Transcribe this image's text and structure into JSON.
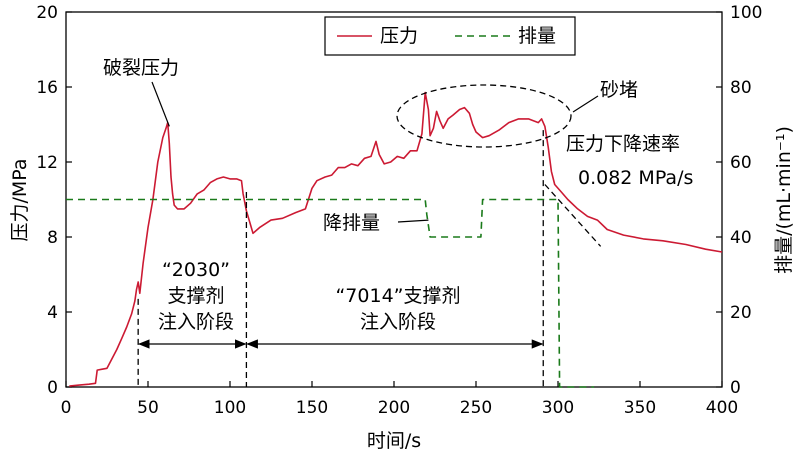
{
  "chart_data": {
    "type": "line",
    "xlabel": "时间/s",
    "ylabel_left": "压力/MPa",
    "ylabel_right": "排量/(mL·min⁻¹)",
    "xlim": [
      0,
      400
    ],
    "ylim_left": [
      0,
      20
    ],
    "ylim_right": [
      0,
      100
    ],
    "x_ticks": [
      "0",
      "50",
      "100",
      "150",
      "200",
      "250",
      "300",
      "350",
      "400"
    ],
    "y_left_ticks": [
      "0",
      "4",
      "8",
      "12",
      "16",
      "20"
    ],
    "y_right_ticks": [
      "0",
      "20",
      "40",
      "60",
      "80",
      "100"
    ],
    "grid": false,
    "legend_position": "top-center",
    "colors": {
      "pressure": "#cc1a33",
      "flow": "#1a7a1a"
    },
    "series": [
      {
        "name": "压力",
        "axis": "left",
        "style": "solid",
        "points": [
          [
            2,
            0.05
          ],
          [
            8,
            0.1
          ],
          [
            14,
            0.15
          ],
          [
            18,
            0.2
          ],
          [
            19,
            0.9
          ],
          [
            22,
            0.95
          ],
          [
            25,
            1.0
          ],
          [
            28,
            1.5
          ],
          [
            31,
            2.0
          ],
          [
            34,
            2.6
          ],
          [
            37,
            3.2
          ],
          [
            40,
            3.9
          ],
          [
            42,
            4.6
          ],
          [
            43,
            5.2
          ],
          [
            44,
            5.6
          ],
          [
            45,
            5.0
          ],
          [
            47,
            6.6
          ],
          [
            50,
            8.5
          ],
          [
            53,
            10.0
          ],
          [
            56,
            12.0
          ],
          [
            59,
            13.3
          ],
          [
            61,
            13.8
          ],
          [
            62,
            14.1
          ],
          [
            63,
            13.0
          ],
          [
            64,
            11.2
          ],
          [
            65,
            10.3
          ],
          [
            66,
            9.7
          ],
          [
            68,
            9.5
          ],
          [
            72,
            9.5
          ],
          [
            76,
            9.8
          ],
          [
            80,
            10.3
          ],
          [
            84,
            10.5
          ],
          [
            88,
            10.9
          ],
          [
            92,
            11.1
          ],
          [
            96,
            11.2
          ],
          [
            100,
            11.1
          ],
          [
            104,
            11.1
          ],
          [
            107,
            11.0
          ],
          [
            108,
            10.3
          ],
          [
            110,
            9.4
          ],
          [
            112,
            8.8
          ],
          [
            114,
            8.2
          ],
          [
            118,
            8.5
          ],
          [
            125,
            8.9
          ],
          [
            132,
            9.0
          ],
          [
            140,
            9.3
          ],
          [
            146,
            9.5
          ],
          [
            150,
            10.6
          ],
          [
            153,
            11.0
          ],
          [
            158,
            11.2
          ],
          [
            162,
            11.3
          ],
          [
            166,
            11.7
          ],
          [
            170,
            11.7
          ],
          [
            174,
            11.9
          ],
          [
            178,
            11.8
          ],
          [
            182,
            12.2
          ],
          [
            186,
            12.3
          ],
          [
            189,
            13.1
          ],
          [
            191,
            12.4
          ],
          [
            194,
            11.9
          ],
          [
            198,
            12.0
          ],
          [
            202,
            12.3
          ],
          [
            206,
            12.2
          ],
          [
            210,
            12.6
          ],
          [
            214,
            12.6
          ],
          [
            217,
            13.5
          ],
          [
            219,
            15.7
          ],
          [
            221,
            14.8
          ],
          [
            222,
            13.4
          ],
          [
            224,
            13.8
          ],
          [
            226,
            14.7
          ],
          [
            228,
            14.2
          ],
          [
            230,
            13.8
          ],
          [
            233,
            14.3
          ],
          [
            236,
            14.5
          ],
          [
            240,
            14.8
          ],
          [
            243,
            14.9
          ],
          [
            246,
            14.6
          ],
          [
            248,
            14.0
          ],
          [
            250,
            13.6
          ],
          [
            254,
            13.3
          ],
          [
            258,
            13.4
          ],
          [
            264,
            13.7
          ],
          [
            270,
            14.1
          ],
          [
            276,
            14.3
          ],
          [
            282,
            14.3
          ],
          [
            288,
            14.1
          ],
          [
            290,
            14.3
          ],
          [
            292,
            13.9
          ],
          [
            294,
            12.8
          ],
          [
            296,
            11.5
          ],
          [
            298,
            10.8
          ],
          [
            302,
            10.4
          ],
          [
            306,
            10.0
          ],
          [
            312,
            9.5
          ],
          [
            318,
            9.1
          ],
          [
            324,
            8.9
          ],
          [
            330,
            8.4
          ],
          [
            340,
            8.1
          ],
          [
            352,
            7.9
          ],
          [
            364,
            7.8
          ],
          [
            378,
            7.6
          ],
          [
            390,
            7.35
          ],
          [
            400,
            7.2
          ]
        ]
      },
      {
        "name": "排量",
        "axis": "right",
        "style": "dashed",
        "points": [
          [
            0,
            50
          ],
          [
            219,
            50
          ],
          [
            220,
            46
          ],
          [
            222,
            40
          ],
          [
            253,
            40
          ],
          [
            254,
            50
          ],
          [
            300,
            50
          ],
          [
            301,
            0
          ],
          [
            322,
            0
          ]
        ]
      }
    ],
    "annotations": {
      "rupture": "破裂压力",
      "screenout": "砂堵",
      "flow_drop": "降排量",
      "decline_title": "压力下降速率",
      "decline_value": "0.082 MPa/s",
      "stage1_line1": "“2030”",
      "stage1_line2": "支撑剂",
      "stage1_line3": "注入阶段",
      "stage2_line1": "“7014”支撑剂",
      "stage2_line2": "注入阶段"
    },
    "stage_boundaries_x": [
      44,
      110,
      291
    ]
  }
}
